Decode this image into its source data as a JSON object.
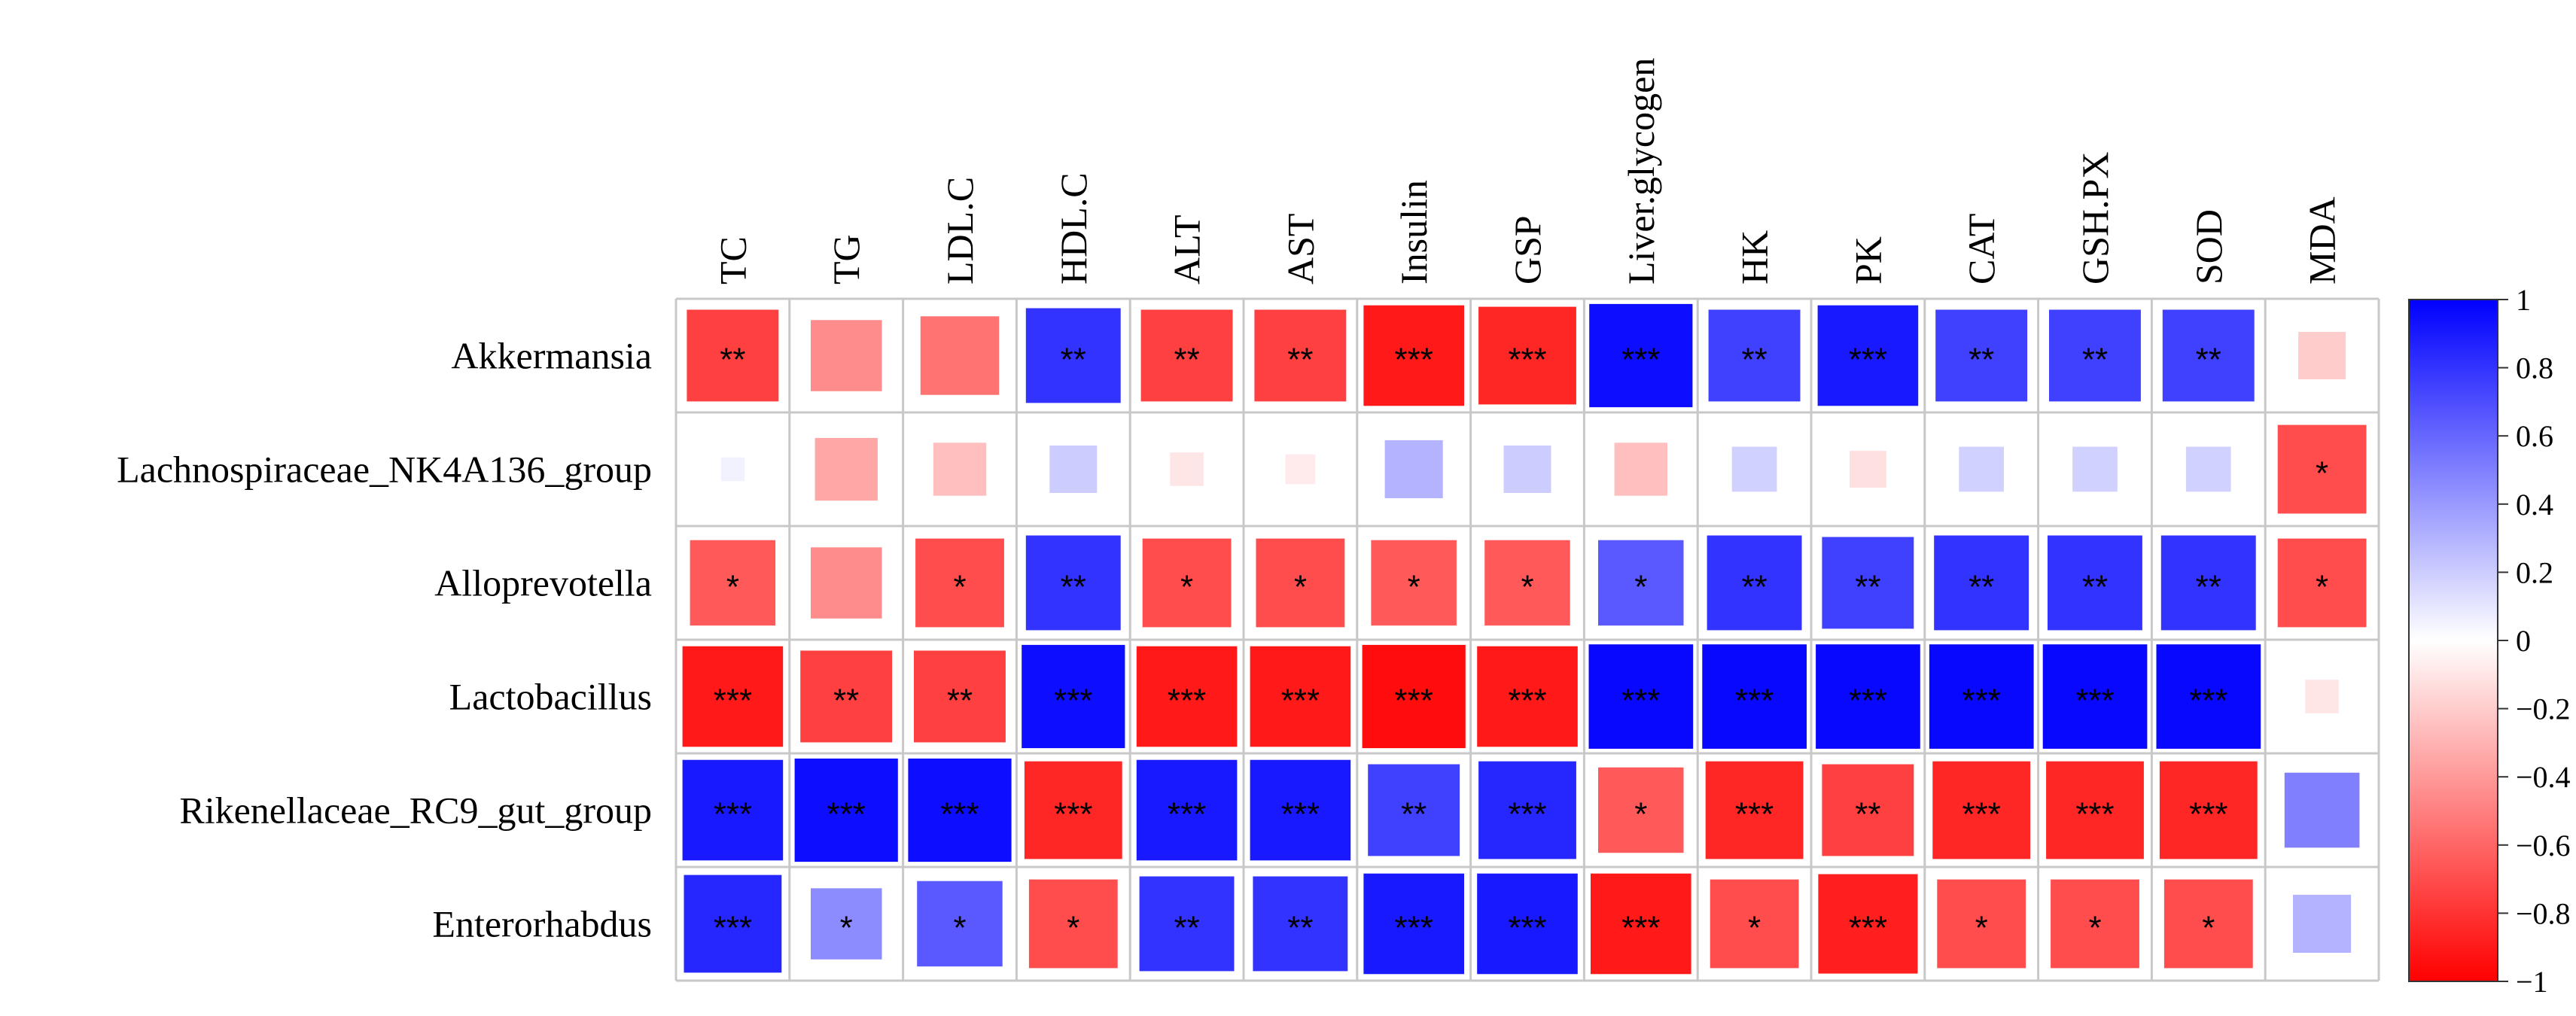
{
  "chart_data": {
    "type": "heatmap",
    "title": "",
    "rows": [
      "Akkermansia",
      "Lachnospiraceae_NK4A136_group",
      "Alloprevotella",
      "Lactobacillus",
      "Rikenellaceae_RC9_gut_group",
      "Enterorhabdus"
    ],
    "columns": [
      "TC",
      "TG",
      "LDL.C",
      "HDL.C",
      "ALT",
      "AST",
      "Insulin",
      "GSP",
      "Liver.glycogen",
      "HK",
      "PK",
      "CAT",
      "GSH.PX",
      "SOD",
      "MDA"
    ],
    "values": [
      [
        -0.75,
        -0.45,
        -0.55,
        0.8,
        -0.75,
        -0.75,
        -0.9,
        -0.85,
        0.95,
        0.75,
        0.9,
        0.75,
        0.75,
        0.75,
        -0.2
      ],
      [
        0.05,
        -0.35,
        -0.25,
        0.2,
        -0.1,
        -0.08,
        0.3,
        0.2,
        -0.25,
        0.18,
        -0.12,
        0.18,
        0.18,
        0.18,
        -0.7
      ],
      [
        -0.65,
        -0.45,
        -0.7,
        0.8,
        -0.7,
        -0.7,
        -0.65,
        -0.65,
        0.65,
        0.8,
        0.75,
        0.8,
        0.8,
        0.8,
        -0.7
      ],
      [
        -0.9,
        -0.75,
        -0.75,
        0.95,
        -0.9,
        -0.9,
        -0.95,
        -0.9,
        0.97,
        0.97,
        0.97,
        0.97,
        0.97,
        0.97,
        -0.1
      ],
      [
        0.9,
        0.95,
        0.95,
        -0.85,
        0.9,
        0.9,
        0.75,
        0.85,
        -0.65,
        -0.85,
        -0.75,
        -0.85,
        -0.85,
        -0.85,
        0.5
      ],
      [
        0.85,
        0.45,
        0.65,
        -0.7,
        0.8,
        0.8,
        0.9,
        0.9,
        -0.9,
        -0.7,
        -0.88,
        -0.7,
        -0.7,
        -0.7,
        0.3
      ]
    ],
    "significance": [
      [
        "**",
        "",
        "",
        "**",
        "**",
        "**",
        "***",
        "***",
        "***",
        "**",
        "***",
        "**",
        "**",
        "**",
        ""
      ],
      [
        "",
        "",
        "",
        "",
        "",
        "",
        "",
        "",
        "",
        "",
        "",
        "",
        "",
        "",
        "*"
      ],
      [
        "*",
        "",
        "*",
        "**",
        "*",
        "*",
        "*",
        "*",
        "*",
        "**",
        "**",
        "**",
        "**",
        "**",
        "*"
      ],
      [
        "***",
        "**",
        "**",
        "***",
        "***",
        "***",
        "***",
        "***",
        "***",
        "***",
        "***",
        "***",
        "***",
        "***",
        ""
      ],
      [
        "***",
        "***",
        "***",
        "***",
        "***",
        "***",
        "**",
        "***",
        "*",
        "***",
        "**",
        "***",
        "***",
        "***",
        ""
      ],
      [
        "***",
        "*",
        "*",
        "*",
        "**",
        "**",
        "***",
        "***",
        "***",
        "*",
        "***",
        "*",
        "*",
        "*",
        ""
      ]
    ],
    "colorbar": {
      "range": [
        -1,
        1
      ],
      "ticks": [
        1,
        0.8,
        0.6,
        0.4,
        0.2,
        0,
        -0.2,
        -0.4,
        -0.6,
        -0.8,
        -1
      ],
      "tick_labels": [
        "1",
        "0.8",
        "0.6",
        "0.4",
        "0.2",
        "0",
        "−0.2",
        "−0.4",
        "−0.6",
        "−0.8",
        "−1"
      ],
      "positive_color": "#0000ff",
      "zero_color": "#ffffff",
      "negative_color": "#ff0000"
    },
    "grid_color": "#c8c8c8"
  }
}
